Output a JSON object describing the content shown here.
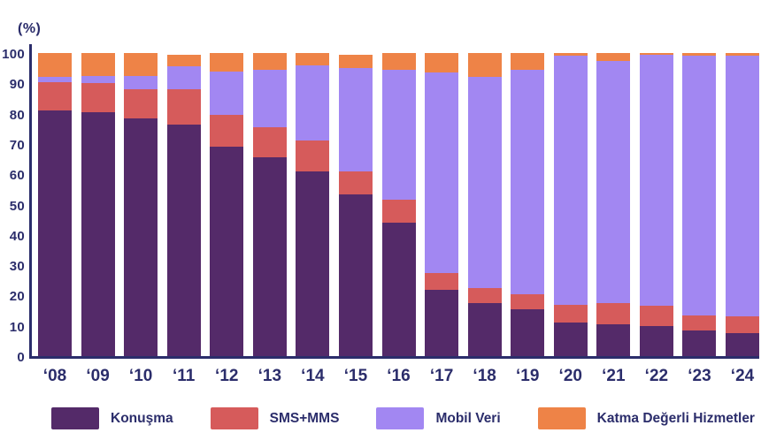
{
  "chart_data": {
    "type": "bar",
    "variant": "stacked-percentage",
    "unit_label": "(%)",
    "title": "",
    "xlabel": "",
    "ylabel": "%",
    "ylim": [
      0,
      100
    ],
    "y_ticks": [
      0,
      10,
      20,
      30,
      40,
      50,
      60,
      70,
      80,
      90,
      100
    ],
    "grid": false,
    "legend_position": "bottom",
    "axis_color": "#2B2D6B",
    "categories": [
      "‘08",
      "‘09",
      "‘10",
      "‘11",
      "‘12",
      "‘13",
      "‘14",
      "‘15",
      "‘16",
      "‘17",
      "‘18",
      "‘19",
      "‘20",
      "‘21",
      "‘22",
      "‘23",
      "‘24"
    ],
    "series": [
      {
        "name": "Konuşma",
        "color": "#542A69",
        "values": [
          81,
          80.5,
          78.5,
          76.5,
          69,
          65.5,
          61,
          53.5,
          44,
          22,
          17.5,
          15.5,
          11,
          10.5,
          10,
          8.5,
          7.5
        ]
      },
      {
        "name": "SMS+MMS",
        "color": "#D65B5B",
        "values": [
          9.5,
          9.5,
          9.5,
          11.5,
          10.5,
          10,
          10,
          7.5,
          7.5,
          5.5,
          5,
          5,
          6,
          7,
          6.5,
          5,
          5.5
        ]
      },
      {
        "name": "Mobil Veri",
        "color": "#A287F2",
        "values": [
          1.5,
          2.5,
          4.5,
          7.5,
          14.5,
          19,
          25,
          34,
          43,
          66,
          69.5,
          74,
          82,
          80,
          83,
          85.5,
          86
        ]
      },
      {
        "name": "Katma Değerli Hizmetler",
        "color": "#EE8347",
        "values": [
          8,
          7.5,
          7.5,
          4,
          6,
          5.5,
          4,
          4.5,
          5.5,
          6.5,
          8,
          5.5,
          1,
          2.5,
          0.5,
          1,
          1
        ]
      }
    ]
  }
}
